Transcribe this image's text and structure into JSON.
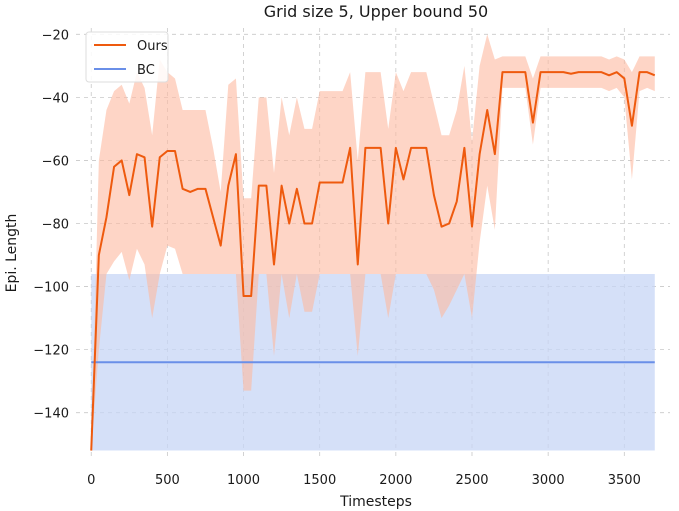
{
  "chart_data": {
    "type": "line",
    "title": "Grid size 5, Upper bound 50",
    "xlabel": "Timesteps",
    "ylabel": "Epi. Length",
    "xlim": [
      -100,
      3800
    ],
    "ylim": [
      -155,
      -18
    ],
    "xticks": [
      0,
      500,
      1000,
      1500,
      2000,
      2500,
      3000,
      3500
    ],
    "yticks": [
      -140,
      -120,
      -100,
      -80,
      -60,
      -40,
      -20
    ],
    "xtick_labels": [
      "0",
      "500",
      "1000",
      "1500",
      "2000",
      "2500",
      "3000",
      "3500"
    ],
    "ytick_labels": [
      "−140",
      "−120",
      "−100",
      "−80",
      "−60",
      "−40",
      "−20"
    ],
    "grid": true,
    "legend_position": "top-left",
    "series": [
      {
        "name": "Ours",
        "color": "#ee5a0e",
        "band_color": "#fdb9a0",
        "x": [
          0,
          50,
          100,
          150,
          200,
          250,
          300,
          350,
          400,
          450,
          500,
          550,
          600,
          650,
          700,
          750,
          800,
          850,
          900,
          950,
          1000,
          1050,
          1100,
          1150,
          1200,
          1250,
          1300,
          1350,
          1400,
          1450,
          1500,
          1550,
          1600,
          1650,
          1700,
          1750,
          1800,
          1850,
          1900,
          1950,
          2000,
          2050,
          2100,
          2150,
          2200,
          2250,
          2300,
          2350,
          2400,
          2450,
          2500,
          2550,
          2600,
          2650,
          2700,
          2750,
          2800,
          2850,
          2900,
          2950,
          3000,
          3050,
          3100,
          3150,
          3200,
          3250,
          3300,
          3350,
          3400,
          3450,
          3500,
          3550,
          3600,
          3650,
          3700
        ],
        "y": [
          -152,
          -90,
          -78,
          -62,
          -60,
          -71,
          -58,
          -59,
          -81,
          -59,
          -57,
          -57,
          -69,
          -70,
          -69,
          -69,
          -78,
          -87,
          -68,
          -58,
          -103,
          -103,
          -68,
          -68,
          -93,
          -68,
          -80,
          -69,
          -80,
          -80,
          -67,
          -67,
          -67,
          -67,
          -56,
          -93,
          -56,
          -56,
          -56,
          -80,
          -56,
          -66,
          -56,
          -56,
          -56,
          -71,
          -81,
          -80,
          -73,
          -56,
          -81,
          -58,
          -44,
          -58,
          -32,
          -32,
          -32,
          -32,
          -48,
          -32,
          -32,
          -32,
          -32,
          -32.5,
          -32,
          -32,
          -32,
          -32,
          -33,
          -32,
          -34,
          -49,
          -32,
          -32,
          -33
        ],
        "lower": [
          -152,
          -120,
          -96,
          -92,
          -89,
          -98,
          -88,
          -93,
          -110,
          -96,
          -87,
          -88,
          -96,
          -96,
          -96,
          -96,
          -96,
          -96,
          -96,
          -96,
          -133,
          -133,
          -96,
          -96,
          -122,
          -96,
          -110,
          -96,
          -108,
          -108,
          -96,
          -96,
          -96,
          -96,
          -96,
          -122,
          -96,
          -96,
          -96,
          -110,
          -96,
          -96,
          -96,
          -96,
          -96,
          -101,
          -110,
          -106,
          -101,
          -96,
          -110,
          -86,
          -68,
          -82,
          -37,
          -37,
          -37,
          -37,
          -55,
          -37,
          -37,
          -37,
          -37,
          -37,
          -37,
          -37,
          -37,
          -37,
          -38,
          -37,
          -40,
          -66,
          -38,
          -37,
          -38
        ],
        "upper": [
          -152,
          -60,
          -44,
          -38,
          -36,
          -42,
          -32,
          -37,
          -52,
          -28,
          -32,
          -34,
          -44,
          -44,
          -44,
          -44,
          -56,
          -70,
          -36,
          -34,
          -72,
          -72,
          -40,
          -40,
          -64,
          -40,
          -52,
          -40,
          -50,
          -50,
          -38,
          -38,
          -38,
          -38,
          -32,
          -60,
          -32,
          -32,
          -32,
          -50,
          -32,
          -38,
          -32,
          -32,
          -32,
          -42,
          -52,
          -52,
          -44,
          -30,
          -54,
          -30,
          -20,
          -28,
          -27,
          -27,
          -27,
          -27,
          -34,
          -27,
          -27,
          -27,
          -27,
          -27,
          -27,
          -27,
          -27,
          -27,
          -28,
          -27,
          -28,
          -32,
          -27,
          -27,
          -27
        ]
      },
      {
        "name": "BC",
        "color": "#6a8fe8",
        "band_color": "#c7d6f5",
        "x": [
          0,
          3700
        ],
        "y": [
          -124,
          -124
        ],
        "lower": [
          -152,
          -152
        ],
        "upper": [
          -96,
          -96
        ]
      }
    ]
  }
}
